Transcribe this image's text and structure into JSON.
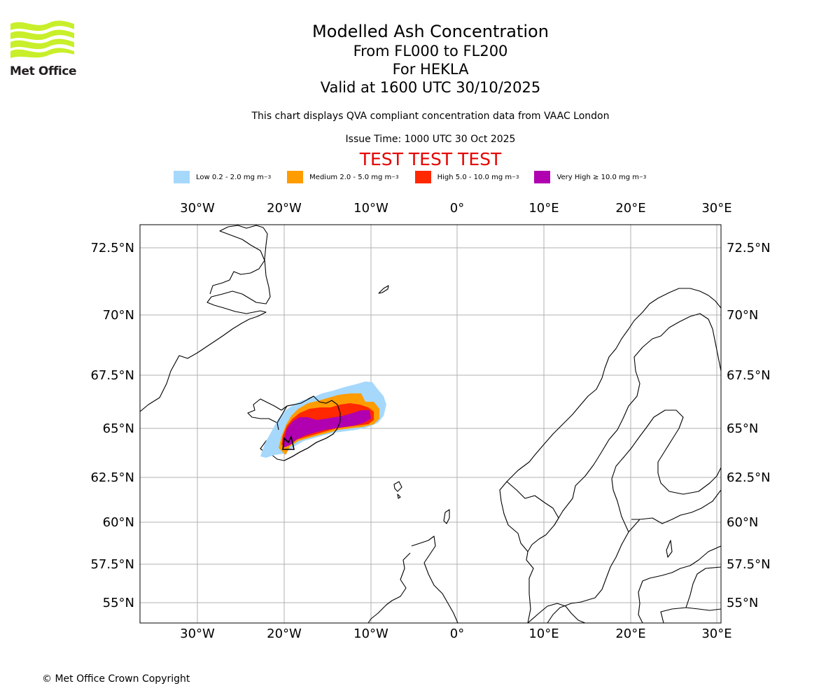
{
  "header": {
    "logo_text": "Met Office",
    "title": "Modelled Ash Concentration",
    "levels": "From FL000 to FL200",
    "volcano": "For HEKLA",
    "valid": "Valid at 1600 UTC 30/10/2025",
    "compliance_note": "This chart displays QVA compliant concentration data from VAAC London",
    "issue_time": "Issue Time: 1000 UTC 30 Oct 2025",
    "test_banner": "TEST TEST TEST"
  },
  "legend": [
    {
      "label": "Low 0.2 - 2.0 mg m",
      "color": "#a6d8fc"
    },
    {
      "label": "Medium 2.0 - 5.0 mg m",
      "color": "#ff9c00"
    },
    {
      "label": "High 5.0 - 10.0 mg m",
      "color": "#ff2800"
    },
    {
      "label": "Very High ≥ 10.0 mg m",
      "color": "#b000b0"
    }
  ],
  "legend_unit_exponent": "−3",
  "map": {
    "lon_ticks": [
      "30°W",
      "20°W",
      "10°W",
      "0°",
      "10°E",
      "20°E",
      "30°E"
    ],
    "lat_ticks": [
      "72.5°N",
      "70°N",
      "67.5°N",
      "65°N",
      "62.5°N",
      "60°N",
      "57.5°N",
      "55°N"
    ],
    "grid": true
  },
  "footer": {
    "copyright": "© Met Office Crown Copyright"
  }
}
